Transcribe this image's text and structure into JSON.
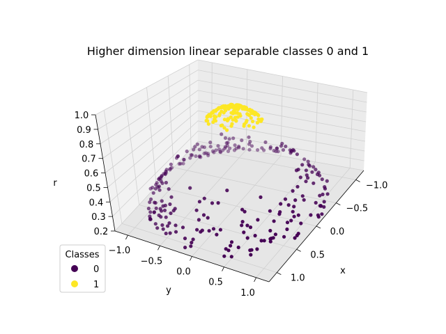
{
  "chart_data": {
    "type": "scatter",
    "title": "Higher dimension linear separable classes 0 and 1",
    "xlabel": "x",
    "ylabel": "y",
    "zlabel": "r",
    "x_ticks": [
      "−1.0",
      "−0.5",
      "0.0",
      "0.5",
      "1.0"
    ],
    "y_ticks": [
      "−1.0",
      "−0.5",
      "0.0",
      "0.5",
      "1.0"
    ],
    "z_ticks": [
      "0.2",
      "0.3",
      "0.4",
      "0.5",
      "0.6",
      "0.7",
      "0.8",
      "0.9",
      "1.0"
    ],
    "xlim": [
      -1.2,
      1.2
    ],
    "ylim": [
      -1.2,
      1.2
    ],
    "zlim": [
      0.2,
      1.0
    ],
    "grid": true,
    "legend": {
      "title": "Classes",
      "placement": "lower-left",
      "entries": [
        {
          "label": "0",
          "color": "#440154"
        },
        {
          "label": "1",
          "color": "#fde725"
        }
      ]
    },
    "series": [
      {
        "name": "0",
        "color": "#440154",
        "description": "ring of points with radius between 0.75 and 1.2, r = exp(-(x^2+y^2))",
        "radius_range": [
          0.75,
          1.2
        ],
        "count": 260
      },
      {
        "name": "1",
        "color": "#fde725",
        "description": "cluster of points near origin with radius below 0.35, r = exp(-(x^2+y^2))",
        "radius_range": [
          0.0,
          0.35
        ],
        "count": 140
      }
    ]
  }
}
